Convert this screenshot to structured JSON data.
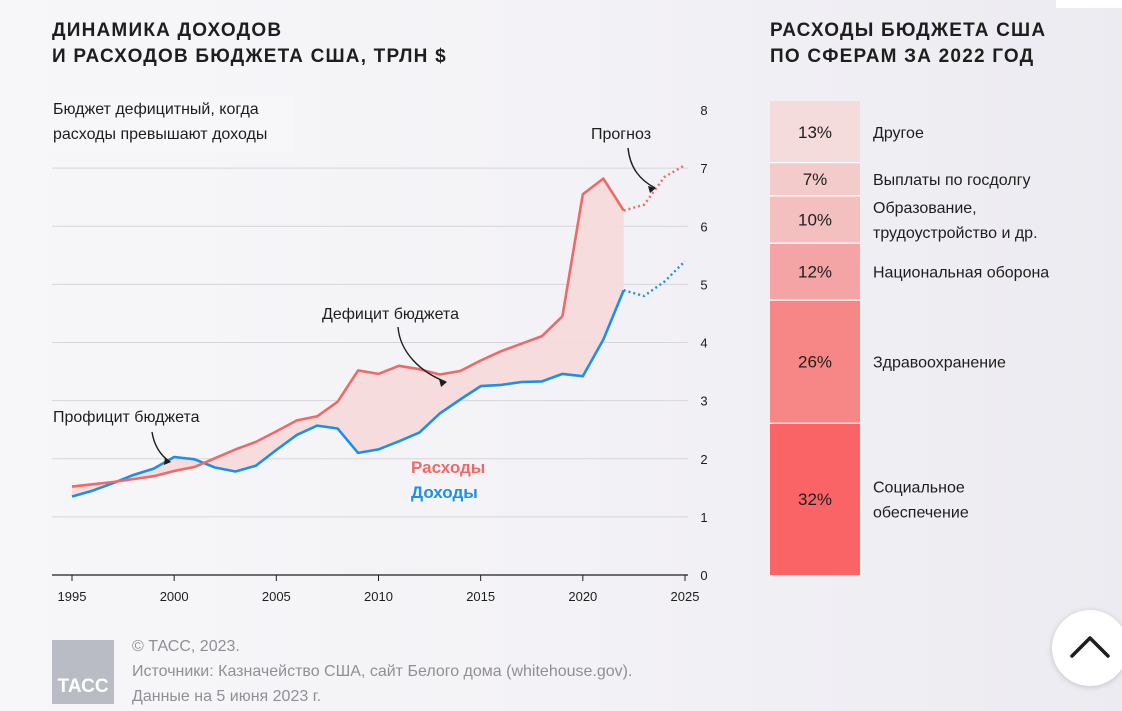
{
  "chart_data": [
    {
      "type": "line",
      "title": "ДИНАМИКА ДОХОДОВ\nИ РАСХОДОВ БЮДЖЕТА США, ТРЛН $",
      "x": [
        1995,
        1996,
        1997,
        1998,
        1999,
        2000,
        2001,
        2002,
        2003,
        2004,
        2005,
        2006,
        2007,
        2008,
        2009,
        2010,
        2011,
        2012,
        2013,
        2014,
        2015,
        2016,
        2017,
        2018,
        2019,
        2020,
        2021,
        2022
      ],
      "series": [
        {
          "name": "Расходы",
          "color": "#ee6a6a",
          "values": [
            1.52,
            1.56,
            1.6,
            1.65,
            1.7,
            1.79,
            1.86,
            2.01,
            2.16,
            2.29,
            2.47,
            2.66,
            2.73,
            2.98,
            3.52,
            3.46,
            3.6,
            3.54,
            3.45,
            3.51,
            3.69,
            3.85,
            3.98,
            4.11,
            4.45,
            6.55,
            6.82,
            6.27
          ]
        },
        {
          "name": "Доходы",
          "color": "#1e8fe6",
          "values": [
            1.35,
            1.45,
            1.58,
            1.72,
            1.83,
            2.03,
            1.99,
            1.85,
            1.78,
            1.88,
            2.15,
            2.41,
            2.57,
            2.52,
            2.1,
            2.16,
            2.3,
            2.45,
            2.78,
            3.02,
            3.25,
            3.27,
            3.32,
            3.33,
            3.46,
            3.42,
            4.05,
            4.9
          ]
        }
      ],
      "forecast": {
        "x": [
          2022,
          2023,
          2024,
          2025
        ],
        "expenditures": [
          6.27,
          6.37,
          6.85,
          7.05
        ],
        "revenues": [
          4.9,
          4.8,
          5.05,
          5.4
        ]
      },
      "ylim": [
        0,
        8
      ],
      "yticks": [
        0,
        1,
        2,
        3,
        4,
        5,
        6,
        7,
        8
      ],
      "xticks": [
        1995,
        2000,
        2005,
        2010,
        2015,
        2020,
        2025
      ],
      "xlim": [
        1995,
        2025
      ],
      "grid": true,
      "annotations": {
        "deficit_note": [
          "Бюджет дефицитный, когда",
          "расходы превышают доходы"
        ],
        "forecast": "Прогноз",
        "deficit": "Дефицит бюджета",
        "surplus": "Профицит бюджета",
        "legend_expenditures": "Расходы",
        "legend_revenues": "Доходы"
      }
    },
    {
      "type": "bar",
      "title": "РАСХОДЫ БЮДЖЕТА США\nПО СФЕРАМ ЗА 2022 ГОД",
      "segments": [
        {
          "label": "Другое",
          "value": 13,
          "display": "13%",
          "color": "#f4dcdc"
        },
        {
          "label": "Выплаты по госдолгу",
          "value": 7,
          "display": "7%",
          "color": "#f4cbcb"
        },
        {
          "label": "Образование,\nтрудоустройство и др.",
          "value": 10,
          "display": "10%",
          "color": "#f3bfbf"
        },
        {
          "label": "Национальная оборона",
          "value": 12,
          "display": "12%",
          "color": "#f4a4a4"
        },
        {
          "label": "Здравоохранение",
          "value": 26,
          "display": "26%",
          "color": "#f78787"
        },
        {
          "label": "Социальное\nобеспечение",
          "value": 32,
          "display": "32%",
          "color": "#fb6466"
        }
      ]
    }
  ],
  "footer": {
    "copyright": "© ТАСС, 2023.",
    "sources": "Источники: Казначейство США, сайт Белого дома (whitehouse.gov).",
    "date_note": "Данные на 5 июня 2023 г.",
    "logo_text": "ТАСС"
  }
}
